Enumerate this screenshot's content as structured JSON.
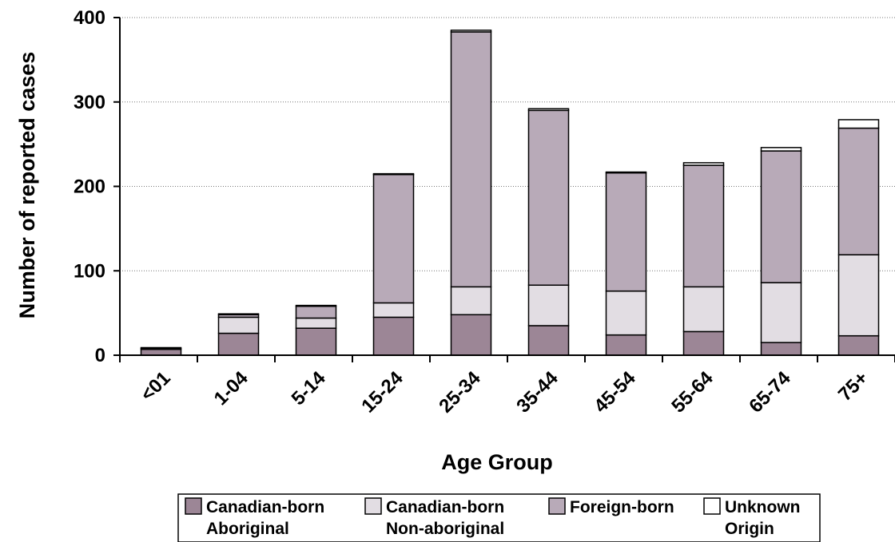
{
  "chart_data": {
    "type": "bar",
    "stacked": true,
    "categories": [
      "<01",
      "1-04",
      "5-14",
      "15-24",
      "25-34",
      "35-44",
      "45-54",
      "55-64",
      "65-74",
      "75+"
    ],
    "series": [
      {
        "name": "Canadian-born Aboriginal",
        "color": "#9c8696",
        "values": [
          7,
          26,
          32,
          45,
          48,
          35,
          24,
          28,
          15,
          23
        ]
      },
      {
        "name": "Canadian-born Non-aboriginal",
        "color": "#e2dde3",
        "values": [
          1,
          19,
          12,
          17,
          33,
          48,
          52,
          53,
          71,
          96
        ]
      },
      {
        "name": "Foreign-born",
        "color": "#b8aab8",
        "values": [
          1,
          3,
          14,
          152,
          302,
          207,
          140,
          144,
          156,
          150
        ]
      },
      {
        "name": "Unknown Origin",
        "color": "#ffffff",
        "values": [
          0,
          1,
          1,
          1,
          2,
          2,
          1,
          3,
          4,
          10
        ]
      }
    ],
    "xlabel": "Age Group",
    "ylabel": "Number of reported cases",
    "ylim": [
      0,
      400
    ],
    "yticks": [
      0,
      100,
      200,
      300,
      400
    ],
    "grid": true,
    "legend_position": "bottom"
  }
}
